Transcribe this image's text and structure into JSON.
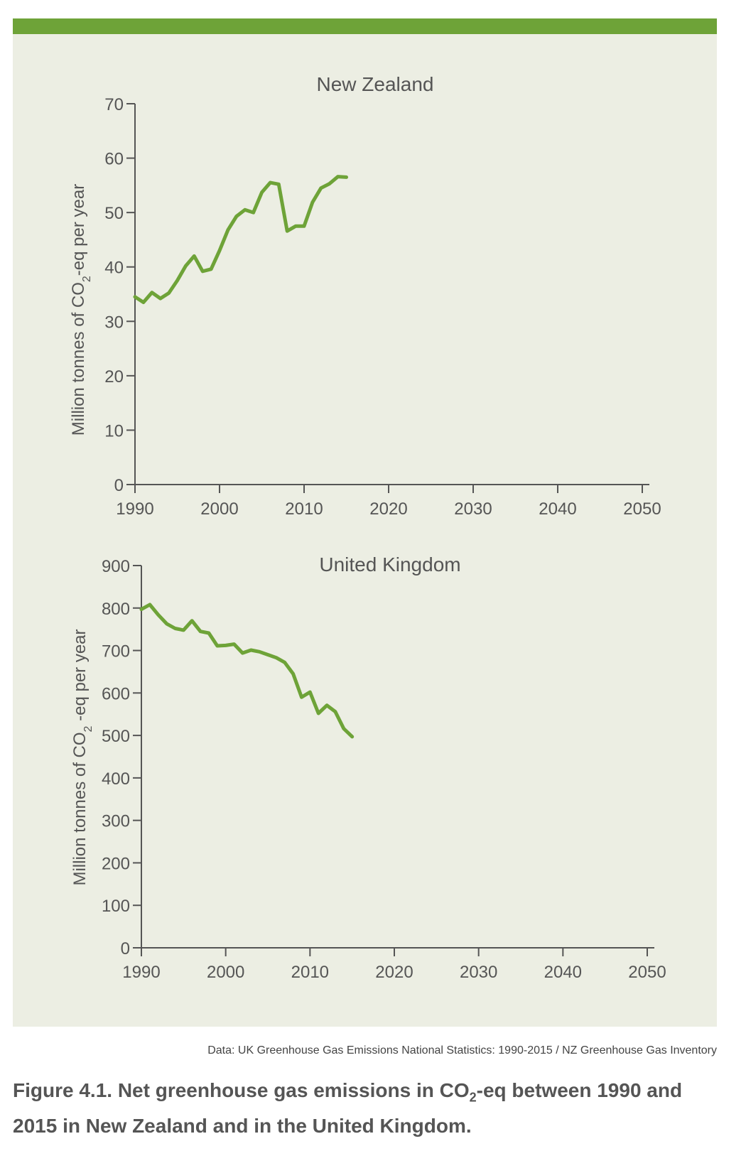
{
  "colors": {
    "accent_bar": "#6ea338",
    "series_line": "#6ea338",
    "panel_bg": "#eceee3"
  },
  "source_text": "Data: UK Greenhouse Gas Emissions National Statistics: 1990-2015 / NZ Greenhouse Gas Inventory",
  "caption": {
    "prefix": "Figure 4.1.  Net greenhouse gas emissions in CO",
    "subscript": "2",
    "suffix": "-eq between 1990 and 2015 in New Zealand and in the United Kingdom."
  },
  "chart_data": [
    {
      "type": "line",
      "title": "New Zealand",
      "ylabel_parts": [
        "Million tonnes of CO",
        "2",
        "-eq per year"
      ],
      "xlim": [
        1990,
        2050
      ],
      "ylim": [
        0,
        70
      ],
      "xticks": [
        1990,
        2000,
        2010,
        2020,
        2030,
        2040,
        2050
      ],
      "yticks": [
        0,
        10,
        20,
        30,
        40,
        50,
        60,
        70
      ],
      "grid": false,
      "series": [
        {
          "x": [
            1990,
            1991,
            1992,
            1993,
            1994,
            1995,
            1996,
            1997,
            1998,
            1999,
            2000,
            2001,
            2002,
            2003,
            2004,
            2005,
            2006,
            2007,
            2008,
            2009,
            2010,
            2011,
            2012,
            2013,
            2014,
            2015
          ],
          "values": [
            34.5,
            33.5,
            35.3,
            34.2,
            35.2,
            37.5,
            40.2,
            42.0,
            39.2,
            39.6,
            43.0,
            46.8,
            49.3,
            50.5,
            50.0,
            53.7,
            55.5,
            55.2,
            46.6,
            47.5,
            47.5,
            51.9,
            54.5,
            55.3,
            56.6,
            56.5
          ]
        }
      ]
    },
    {
      "type": "line",
      "title": "United Kingdom",
      "ylabel_parts": [
        "Million tonnes of CO",
        "2",
        " -eq per year"
      ],
      "xlim": [
        1990,
        2050
      ],
      "ylim": [
        0,
        900
      ],
      "xticks": [
        1990,
        2000,
        2010,
        2020,
        2030,
        2040,
        2050
      ],
      "yticks": [
        0,
        100,
        200,
        300,
        400,
        500,
        600,
        700,
        800,
        900
      ],
      "grid": false,
      "series": [
        {
          "x": [
            1990,
            1991,
            1992,
            1993,
            1994,
            1995,
            1996,
            1997,
            1998,
            1999,
            2000,
            2001,
            2002,
            2003,
            2004,
            2005,
            2006,
            2007,
            2008,
            2009,
            2010,
            2011,
            2012,
            2013,
            2014,
            2015
          ],
          "values": [
            797,
            808,
            784,
            763,
            752,
            748,
            770,
            745,
            741,
            711,
            712,
            715,
            694,
            701,
            697,
            690,
            683,
            672,
            645,
            590,
            602,
            552,
            571,
            556,
            516,
            497
          ]
        }
      ]
    }
  ]
}
